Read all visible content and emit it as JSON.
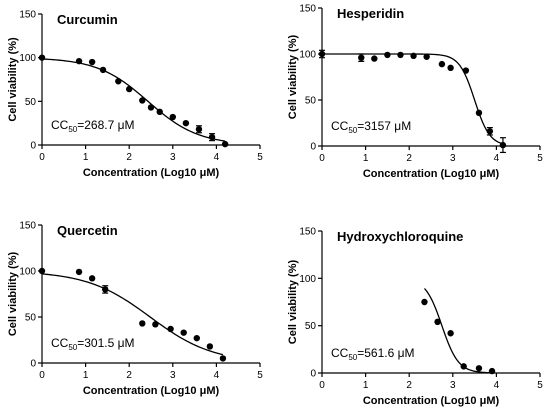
{
  "chart_data": [
    {
      "type": "scatter",
      "title": "Curcumin",
      "xlabel": "Concentration (Log10 μM)",
      "ylabel": "Cell viability (%)",
      "xlim": [
        0,
        5
      ],
      "ylim": [
        0,
        150
      ],
      "xticks": [
        0,
        1,
        2,
        3,
        4,
        5
      ],
      "yticks": [
        0,
        50,
        100,
        150
      ],
      "annotation": {
        "prefix": "CC",
        "sub": "50",
        "suffix": "=268.7 μM"
      },
      "ic50_log": 2.43,
      "hill": 0.75,
      "top": 100,
      "points": [
        {
          "x": 0,
          "y": 100
        },
        {
          "x": 0.85,
          "y": 96
        },
        {
          "x": 1.15,
          "y": 95
        },
        {
          "x": 1.4,
          "y": 86
        },
        {
          "x": 1.75,
          "y": 73
        },
        {
          "x": 2.0,
          "y": 64
        },
        {
          "x": 2.3,
          "y": 51
        },
        {
          "x": 2.5,
          "y": 43
        },
        {
          "x": 2.7,
          "y": 38
        },
        {
          "x": 3.0,
          "y": 32
        },
        {
          "x": 3.3,
          "y": 25
        },
        {
          "x": 3.6,
          "y": 18,
          "err": 4
        },
        {
          "x": 3.9,
          "y": 9,
          "err": 4
        },
        {
          "x": 4.2,
          "y": 1
        }
      ]
    },
    {
      "type": "scatter",
      "title": "Hesperidin",
      "xlabel": "Concentration (Log10 μM)",
      "ylabel": "Cell viability (%)",
      "xlim": [
        0,
        5
      ],
      "ylim": [
        0,
        150
      ],
      "xticks": [
        0,
        1,
        2,
        3,
        4,
        5
      ],
      "yticks": [
        0,
        50,
        100,
        150
      ],
      "annotation": {
        "prefix": "CC",
        "sub": "50",
        "suffix": "=3157 μM"
      },
      "ic50_log": 3.5,
      "hill": 2.5,
      "top": 100,
      "points": [
        {
          "x": 0,
          "y": 100,
          "err": 4
        },
        {
          "x": 0.9,
          "y": 96,
          "err": 4
        },
        {
          "x": 1.2,
          "y": 95
        },
        {
          "x": 1.5,
          "y": 99
        },
        {
          "x": 1.8,
          "y": 99
        },
        {
          "x": 2.1,
          "y": 98
        },
        {
          "x": 2.4,
          "y": 97
        },
        {
          "x": 2.75,
          "y": 89
        },
        {
          "x": 2.95,
          "y": 85
        },
        {
          "x": 3.3,
          "y": 82
        },
        {
          "x": 3.6,
          "y": 36
        },
        {
          "x": 3.85,
          "y": 16,
          "err": 4
        },
        {
          "x": 4.15,
          "y": 1,
          "err": 8
        }
      ]
    },
    {
      "type": "scatter",
      "title": "Quercetin",
      "xlabel": "Concentration (Log10 μM)",
      "ylabel": "Cell viability (%)",
      "xlim": [
        0,
        5
      ],
      "ylim": [
        0,
        150
      ],
      "xticks": [
        0,
        1,
        2,
        3,
        4,
        5
      ],
      "yticks": [
        0,
        50,
        100,
        150
      ],
      "annotation": {
        "prefix": "CC",
        "sub": "50",
        "suffix": "=301.5 μM"
      },
      "ic50_log": 2.48,
      "hill": 0.6,
      "top": 100,
      "points": [
        {
          "x": 0,
          "y": 100
        },
        {
          "x": 0.85,
          "y": 99
        },
        {
          "x": 1.15,
          "y": 92
        },
        {
          "x": 1.45,
          "y": 80,
          "err": 4
        },
        {
          "x": 2.3,
          "y": 43
        },
        {
          "x": 2.6,
          "y": 42
        },
        {
          "x": 2.95,
          "y": 37
        },
        {
          "x": 3.25,
          "y": 33
        },
        {
          "x": 3.55,
          "y": 27
        },
        {
          "x": 3.85,
          "y": 18
        },
        {
          "x": 4.15,
          "y": 5
        }
      ]
    },
    {
      "type": "scatter",
      "title": "Hydroxychloroquine",
      "xlabel": "Concentration (Log10 μM)",
      "ylabel": "Cell viability (%)",
      "xlim": [
        0,
        5
      ],
      "ylim": [
        0,
        150
      ],
      "xticks": [
        0,
        1,
        2,
        3,
        4,
        5
      ],
      "yticks": [
        0,
        50,
        100,
        150
      ],
      "annotation": {
        "prefix": "CC",
        "sub": "50",
        "suffix": "=561.6 μM"
      },
      "ic50_log": 2.75,
      "hill": 2.3,
      "top": 100,
      "points": [
        {
          "x": 2.35,
          "y": 75
        },
        {
          "x": 2.65,
          "y": 54
        },
        {
          "x": 2.95,
          "y": 42
        },
        {
          "x": 3.25,
          "y": 7
        },
        {
          "x": 3.6,
          "y": 5
        },
        {
          "x": 3.9,
          "y": 2
        }
      ]
    }
  ]
}
